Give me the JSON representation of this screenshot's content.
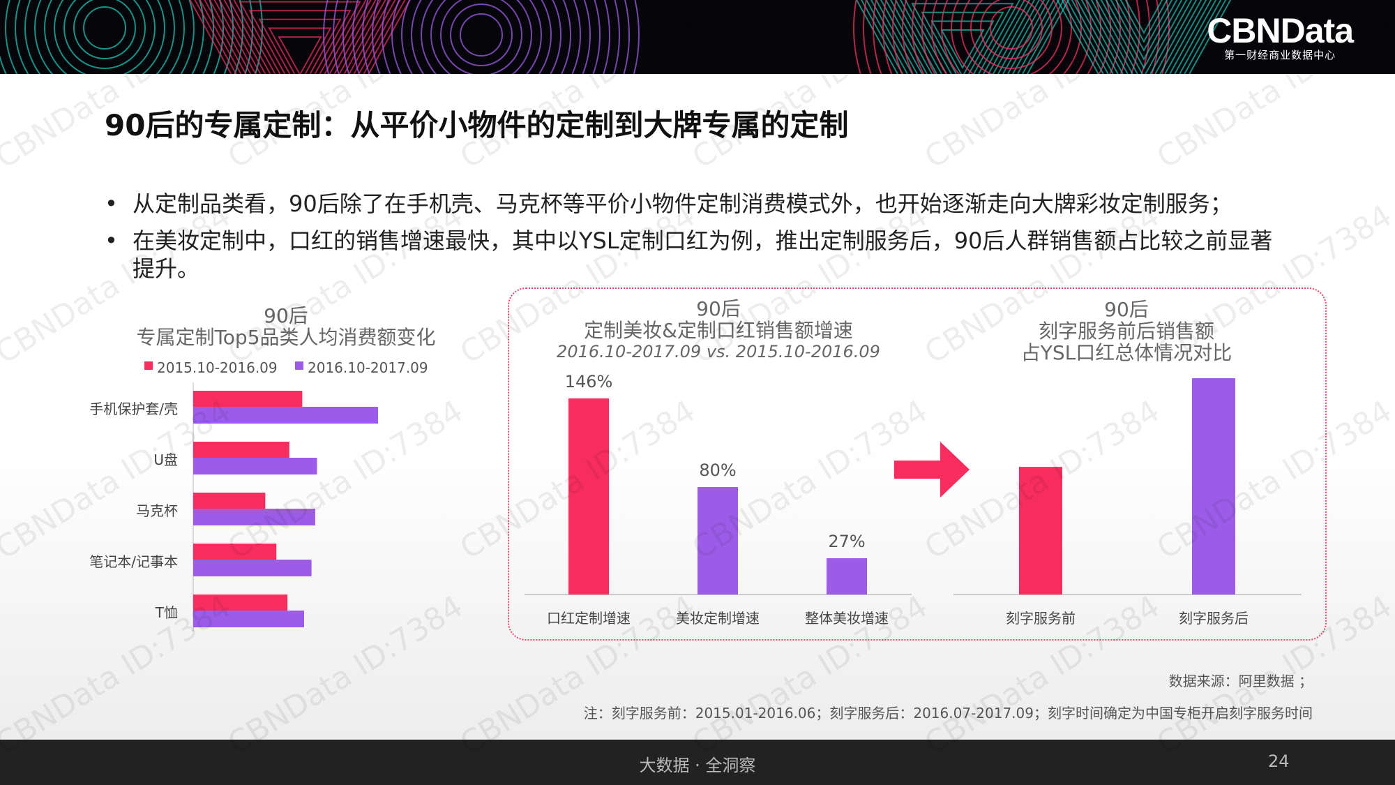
{
  "header": {
    "logo_text": "CBNData",
    "logo_subtitle": "第一财经商业数据中心",
    "colors": {
      "pink": "#f72d60",
      "purple": "#9d5ce8",
      "teal": "#19c4b4"
    }
  },
  "title": "90后的专属定制：从平价小物件的定制到大牌专属的定制",
  "bullets": [
    "从定制品类看，90后除了在手机壳、马克杯等平价小物件定制消费模式外，也开始逐渐走向大牌彩妆定制服务；",
    "在美妆定制中，口红的销售增速最快，其中以YSL定制口红为例，推出定制服务后，90后人群销售额占比较之前显著提升。"
  ],
  "bullet_symbol": "•",
  "chart1_title": {
    "line1": "90后",
    "line2": "专属定制Top5品类人均消费额变化"
  },
  "chart2_title": {
    "line1": "90后",
    "line2": "定制美妆&定制口红销售额增速",
    "line3": "2016.10-2017.09 vs. 2015.10-2016.09"
  },
  "chart3_title": {
    "line1": "90后",
    "line2": "刻字服务前后销售额",
    "line3": "占YSL口红总体情况对比"
  },
  "chart_data": [
    {
      "type": "bar",
      "orientation": "horizontal",
      "categories": [
        "手机保护套/壳",
        "U盘",
        "马克杯",
        "笔记本/记事本",
        "T恤"
      ],
      "series": [
        {
          "name": "2015.10-2016.09",
          "color": "#f72d60",
          "values": [
            59,
            52,
            39,
            45,
            51
          ]
        },
        {
          "name": "2016.10-2017.09",
          "color": "#9d5ce8",
          "values": [
            100,
            67,
            66,
            64,
            60
          ]
        }
      ],
      "legend": "top",
      "value_axis_shown": false,
      "grid": false
    },
    {
      "type": "bar",
      "categories": [
        "口红定制增速",
        "美妆定制增速",
        "整体美妆增速"
      ],
      "values": [
        146,
        80,
        27
      ],
      "data_labels": [
        "146%",
        "80%",
        "27%"
      ],
      "colors": [
        "#f72d60",
        "#9d5ce8",
        "#9d5ce8"
      ],
      "unit": "%",
      "ylim": [
        0,
        146
      ],
      "grid": false
    },
    {
      "type": "bar",
      "categories": [
        "刻字服务前",
        "刻字服务后"
      ],
      "values": [
        59,
        100
      ],
      "colors": [
        "#f72d60",
        "#9d5ce8"
      ],
      "value_axis_shown": false,
      "grid": false
    }
  ],
  "arrow_icon": "right-arrow-icon",
  "source": "数据来源：阿里数据 ；",
  "note": "注：刻字服务前：2015.01-2016.06；刻字服务后：2016.07-2017.09；刻字时间确定为中国专柜开启刻字服务时间",
  "footer": {
    "slogan": "大数据 · 全洞察",
    "page_number": "24"
  },
  "watermark_text": "CBNData ID:7384"
}
